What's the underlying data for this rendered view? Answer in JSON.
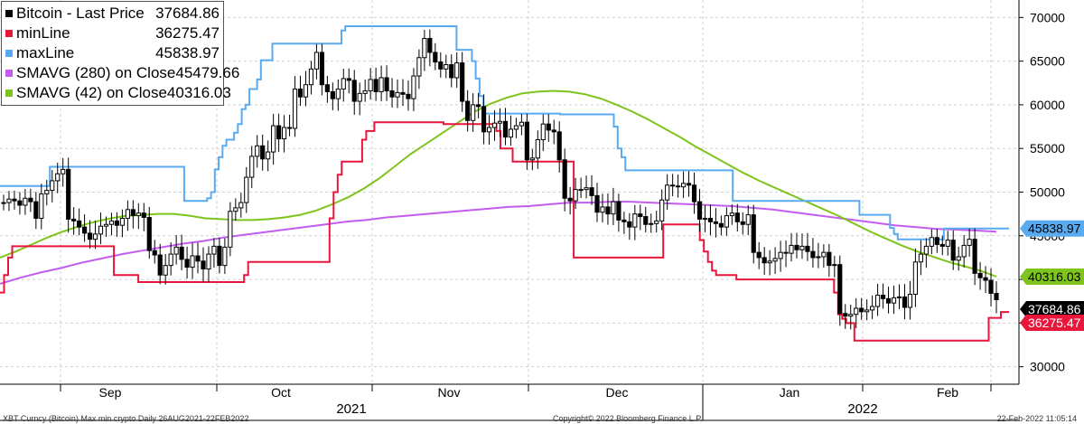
{
  "legend": [
    {
      "name": "Bitcoin - Last Price",
      "value": "37684.86",
      "color": "#000000"
    },
    {
      "name": "minLine",
      "value": "36275.47",
      "color": "#e8163b"
    },
    {
      "name": "maxLine",
      "value": "45838.97",
      "color": "#5aaaf0"
    },
    {
      "name": "SMAVG (280)  on Close",
      "value": "45479.66",
      "color": "#c25df0"
    },
    {
      "name": "SMAVG (42)  on Close",
      "value": "40316.03",
      "color": "#7ec41c"
    }
  ],
  "footer": {
    "left": "XBT Curncy (Bitcoin) Max min crypto  Daily 26AUG2021-22FEB2022",
    "mid": "Copyright© 2022 Bloomberg Finance L.P.",
    "right": "22-Feb-2022 11:05:14"
  },
  "chart_data": {
    "type": "candlestick",
    "ylim": [
      28000,
      72000
    ],
    "y_ticks": [
      30000,
      35000,
      40000,
      45000,
      50000,
      55000,
      60000,
      65000,
      70000
    ],
    "y_tick_labels": [
      "30000",
      "35000",
      "40000",
      "45000",
      "50000",
      "55000",
      "60000",
      "65000",
      "70000"
    ],
    "x_month_labels": [
      "Sep",
      "Oct",
      "Nov",
      "Dec",
      "Jan",
      "Feb"
    ],
    "x_year_labels": [
      "2021",
      "2022"
    ],
    "grid": true,
    "legend_position": "top-left",
    "last_value_labels": [
      {
        "text": "45838.97",
        "value": 45838.97,
        "bg": "#5aaaf0",
        "fg": "#000000"
      },
      {
        "text": "40316.03",
        "value": 40316.03,
        "bg": "#7ec41c",
        "fg": "#000000"
      },
      {
        "text": "37684.86",
        "value": 37684.86,
        "bg": "#000000",
        "fg": "#ffffff"
      },
      {
        "text": "36275.47",
        "value": 36275.47,
        "bg": "#e8163b",
        "fg": "#ffffff"
      }
    ],
    "series": [
      {
        "name": "Bitcoin - Last Price",
        "color": "#000000",
        "style": "candles",
        "close": [
          48800,
          49200,
          49000,
          48500,
          49300,
          48900,
          47000,
          49800,
          50200,
          51300,
          52100,
          52600,
          46900,
          46700,
          46000,
          45300,
          44600,
          45200,
          46100,
          46300,
          46700,
          46200,
          47000,
          48000,
          47300,
          47600,
          47100,
          43300,
          42800,
          40500,
          41600,
          42900,
          43700,
          42300,
          41400,
          42700,
          42100,
          41200,
          42900,
          43800,
          41600,
          43700,
          47800,
          48200,
          48800,
          51700,
          54100,
          55300,
          53800,
          54600,
          57600,
          56100,
          57400,
          57300,
          61800,
          60900,
          62300,
          64100,
          66000,
          62300,
          61500,
          60700,
          61800,
          63000,
          62800,
          60400,
          61300,
          61600,
          62900,
          61500,
          63100,
          61600,
          60900,
          61400,
          61200,
          60700,
          63300,
          65400,
          67600,
          66000,
          64900,
          64100,
          64600,
          63100,
          64800,
          60400,
          58200,
          60000,
          59800,
          56900,
          57400,
          57900,
          58100,
          56300,
          57200,
          57600,
          58000,
          53700,
          53900,
          56000,
          57800,
          57100,
          56900,
          53700,
          49300,
          49000,
          50300,
          50300,
          50500,
          49600,
          47700,
          48300,
          47500,
          48900,
          46800,
          46600,
          46000,
          47500,
          47200,
          46300,
          46400,
          46700,
          49100,
          50800,
          50700,
          50600,
          51000,
          50800,
          48900,
          46900,
          47000,
          46600,
          46400,
          46000,
          47300,
          47600,
          46600,
          46300,
          47400,
          43100,
          42500,
          41900,
          42100,
          42400,
          43100,
          43000,
          43900,
          43400,
          43800,
          43200,
          42500,
          42600,
          43100,
          41600,
          41700,
          36100,
          35800,
          36000,
          36700,
          36300,
          36500,
          36900,
          38200,
          37800,
          37300,
          37900,
          38000,
          36800,
          38300,
          42000,
          42900,
          43800,
          44800,
          44000,
          43800,
          44500,
          42200,
          42600,
          43900,
          44600,
          40700,
          40200,
          39900,
          38400,
          37684.86
        ]
      },
      {
        "name": "minLine",
        "color": "#e8163b",
        "style": "step",
        "values": [
          38500,
          40500,
          42500,
          43800,
          43800,
          43800,
          43800,
          43800,
          43800,
          43800,
          43800,
          43800,
          43800,
          43800,
          43800,
          43800,
          43800,
          43800,
          43800,
          43800,
          43800,
          43800,
          43800,
          43800,
          43800,
          43800,
          43800,
          43800,
          40500,
          40500,
          40500,
          40500,
          40500,
          40500,
          39700,
          39700,
          39700,
          39700,
          39700,
          39700,
          39700,
          39700,
          39700,
          39700,
          39700,
          39700,
          39700,
          39700,
          39700,
          39700,
          39700,
          39700,
          39700,
          39700,
          39700,
          39700,
          39700,
          39700,
          39700,
          39700,
          40500,
          42000,
          42000,
          42000,
          42000,
          42000,
          42000,
          42000,
          42000,
          42000,
          42000,
          42000,
          42000,
          42000,
          42000,
          42000,
          42000,
          42000,
          42000,
          42000,
          42000,
          47000,
          50000,
          52000,
          53500,
          53500,
          53500,
          53500,
          53500,
          56000,
          57000,
          57000,
          58000,
          58000,
          58000,
          58000,
          58000,
          58000,
          58000,
          58000,
          58000,
          58000,
          58000,
          58000,
          58000,
          58000,
          58000,
          58000,
          58000,
          57800,
          57800,
          57800,
          57800,
          57800,
          57800,
          57800,
          57800,
          57800,
          57800,
          57800,
          57800,
          57800,
          57000,
          55000,
          55000,
          55000,
          53500,
          53500,
          53500,
          53500,
          53500,
          53500,
          53500,
          53500,
          53500,
          53500,
          53500,
          53500,
          53500,
          53500,
          53500,
          42500,
          42500,
          42500,
          42500,
          42500,
          42500,
          42500,
          42500,
          42500,
          42500,
          42500,
          42500,
          42500,
          42500,
          42500,
          42500,
          42500,
          42500,
          42500,
          42500,
          42500,
          42500,
          46300,
          46300,
          46300,
          46300,
          46300,
          46300,
          46300,
          46300,
          46300,
          44500,
          43200,
          42000,
          41000,
          40500,
          40500,
          40500,
          40500,
          40500,
          40000,
          40000,
          40000,
          40000,
          40000,
          40000,
          40000,
          40000,
          40000,
          40000,
          40000,
          40000,
          40000,
          40000,
          40000,
          40000,
          40000,
          40000,
          40000,
          40000,
          40000,
          40000,
          40000,
          40000,
          38500,
          36000,
          35500,
          35000,
          35000,
          33000,
          33000,
          33000,
          33000,
          33000,
          33000,
          33000,
          33000,
          33000,
          33000,
          33000,
          33000,
          33000,
          33000,
          33000,
          33000,
          33000,
          33000,
          33000,
          33000,
          33000,
          33000,
          33000,
          33000,
          33000,
          33000,
          33000,
          33000,
          33000,
          33000,
          33000,
          33000,
          33000,
          35600,
          35600,
          35600,
          36275.47,
          36275.47,
          36275.47
        ]
      },
      {
        "name": "maxLine",
        "color": "#5aaaf0",
        "style": "step",
        "values": [
          50700,
          50700,
          50700,
          50700,
          50700,
          50700,
          50700,
          50700,
          50700,
          50700,
          50700,
          50700,
          50700,
          52900,
          52900,
          52900,
          52900,
          52900,
          52900,
          52900,
          52900,
          52900,
          52900,
          52900,
          52900,
          52900,
          52900,
          52900,
          52900,
          52900,
          52900,
          52900,
          52900,
          52900,
          52900,
          52900,
          52900,
          52900,
          52900,
          52900,
          52900,
          52900,
          52900,
          52900,
          52900,
          52900,
          52900,
          52900,
          49000,
          49000,
          49000,
          49000,
          49000,
          49000,
          49300,
          50000,
          52600,
          54000,
          55300,
          56000,
          56000,
          56800,
          57800,
          59500,
          60000,
          61800,
          61800,
          62900,
          65100,
          65100,
          65100,
          67000,
          67000,
          67000,
          67000,
          67000,
          67000,
          67000,
          67000,
          67000,
          67000,
          67000,
          67000,
          67000,
          67000,
          67000,
          67000,
          67000,
          67000,
          68500,
          69000,
          69000,
          69000,
          69000,
          69000,
          69000,
          69000,
          69000,
          69000,
          69000,
          69000,
          69000,
          69000,
          69000,
          69000,
          69000,
          69000,
          69000,
          69000,
          69000,
          69000,
          69000,
          69000,
          69000,
          69000,
          69000,
          69000,
          69000,
          69000,
          66300,
          66300,
          66300,
          66300,
          65000,
          63000,
          61000,
          59000,
          59000,
          59000,
          59000,
          59000,
          59000,
          59000,
          59000,
          59000,
          59000,
          59000,
          59000,
          59000,
          59000,
          59000,
          59000,
          59000,
          59000,
          59000,
          59000,
          58900,
          58900,
          58900,
          58900,
          58900,
          58900,
          58900,
          58900,
          58900,
          58900,
          58900,
          58900,
          58900,
          58900,
          57500,
          55000,
          54000,
          52500,
          52500,
          52500,
          52500,
          52500,
          52500,
          52500,
          52500,
          52500,
          52500,
          52500,
          52500,
          52500,
          52500,
          52500,
          52500,
          52500,
          52500,
          52500,
          52500,
          52500,
          52500,
          52500,
          52500,
          52500,
          52500,
          52500,
          52500,
          49000,
          49000,
          49000,
          49000,
          49000,
          49000,
          49000,
          49000,
          49000,
          49000,
          49000,
          49000,
          49000,
          49000,
          49000,
          49000,
          49000,
          49000,
          49000,
          49000,
          49000,
          49000,
          49000,
          49000,
          49000,
          49000,
          49000,
          49000,
          49000,
          49000,
          49000,
          49000,
          49000,
          47400,
          47400,
          47400,
          47400,
          47400,
          47400,
          47400,
          47400,
          45900,
          45200,
          44600,
          44600,
          44600,
          44600,
          44600,
          44600,
          44600,
          44600,
          44600,
          44600,
          44600,
          44600,
          45838.97,
          45838.97,
          45838.97,
          45838.97,
          45838.97,
          45838.97,
          45838.97,
          45838.97,
          45838.97,
          45838.97,
          45838.97,
          45838.97,
          45838.97,
          45838.97,
          45838.97,
          45838.97,
          45838.97,
          45838.97
        ]
      },
      {
        "name": "SMAVG (280)  on Close",
        "color": "#c25df0",
        "style": "line",
        "values": [
          39500,
          40200,
          40800,
          41300,
          41900,
          42400,
          42900,
          43300,
          43700,
          44100,
          44400,
          44800,
          45100,
          45400,
          45700,
          46000,
          46300,
          46600,
          46800,
          47100,
          47300,
          47500,
          47700,
          47900,
          48100,
          48300,
          48400,
          48600,
          48800,
          48800,
          48900,
          48900,
          48800,
          48700,
          48600,
          48500,
          48400,
          48200,
          48000,
          47700,
          47400,
          47100,
          46800,
          46500,
          46200,
          46000,
          45800,
          45700,
          45600,
          45479.66
        ]
      },
      {
        "name": "SMAVG (42)  on Close",
        "color": "#7ec41c",
        "style": "line",
        "values": [
          42500,
          43200,
          44000,
          44800,
          45500,
          46100,
          46600,
          47000,
          47300,
          47400,
          47500,
          47500,
          47300,
          47000,
          46900,
          46800,
          46800,
          46900,
          47100,
          47400,
          47900,
          48600,
          49400,
          50400,
          51600,
          53000,
          54400,
          55600,
          56800,
          58000,
          59200,
          60100,
          60800,
          61300,
          61500,
          61600,
          61500,
          61200,
          60700,
          60000,
          59200,
          58300,
          57300,
          56300,
          55200,
          54200,
          53200,
          52200,
          51300,
          50500,
          49700,
          48900,
          48100,
          47300,
          46400,
          45500,
          44700,
          43900,
          43200,
          42600,
          42000,
          41500,
          41000,
          40316.03
        ]
      }
    ]
  }
}
